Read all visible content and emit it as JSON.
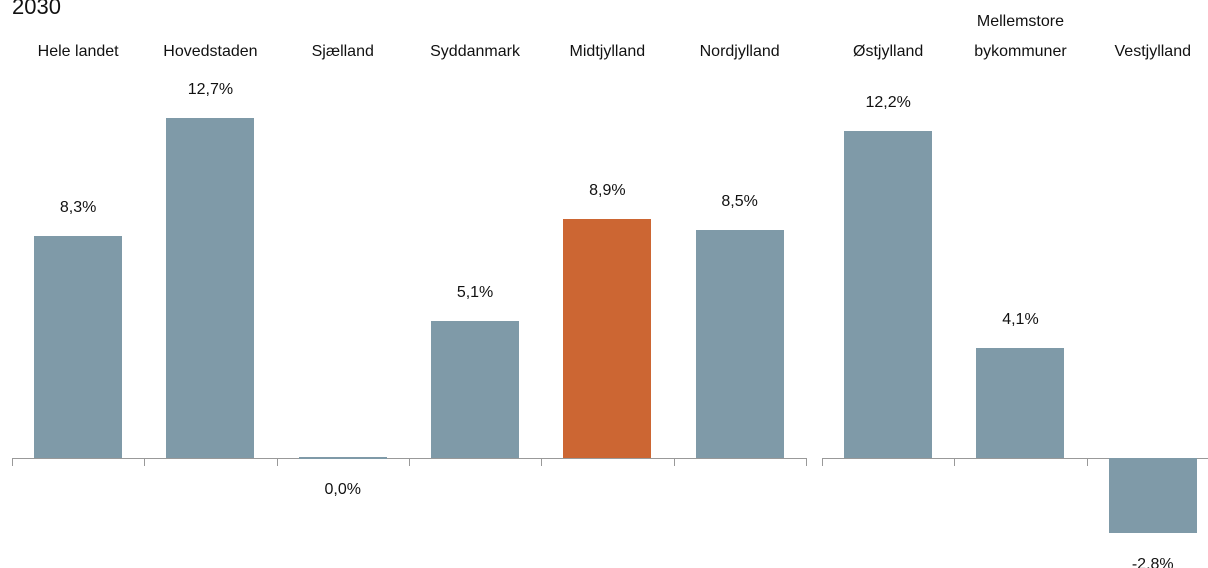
{
  "chart_data": [
    {
      "type": "bar",
      "title": "2030",
      "categories": [
        "Hele landet",
        "Hovedstaden",
        "Sjælland",
        "Syddanmark",
        "Midtjylland",
        "Nordjylland"
      ],
      "values": [
        8.3,
        12.7,
        0.0,
        5.1,
        8.9,
        8.5
      ],
      "value_labels": [
        "8,3%",
        "12,7%",
        "0,0%",
        "5,1%",
        "8,9%",
        "8,5%"
      ],
      "colors": [
        "#7f9aa8",
        "#7f9aa8",
        "#7f9aa8",
        "#7f9aa8",
        "#cc6633",
        "#7f9aa8"
      ]
    },
    {
      "type": "bar",
      "categories": [
        "Østjylland",
        "Mellemstore bykommuner",
        "Vestjylland"
      ],
      "values": [
        12.2,
        4.1,
        -2.8
      ],
      "value_labels": [
        "12,2%",
        "4,1%",
        "-2,8%"
      ],
      "colors": [
        "#7f9aa8",
        "#7f9aa8",
        "#7f9aa8"
      ]
    }
  ]
}
